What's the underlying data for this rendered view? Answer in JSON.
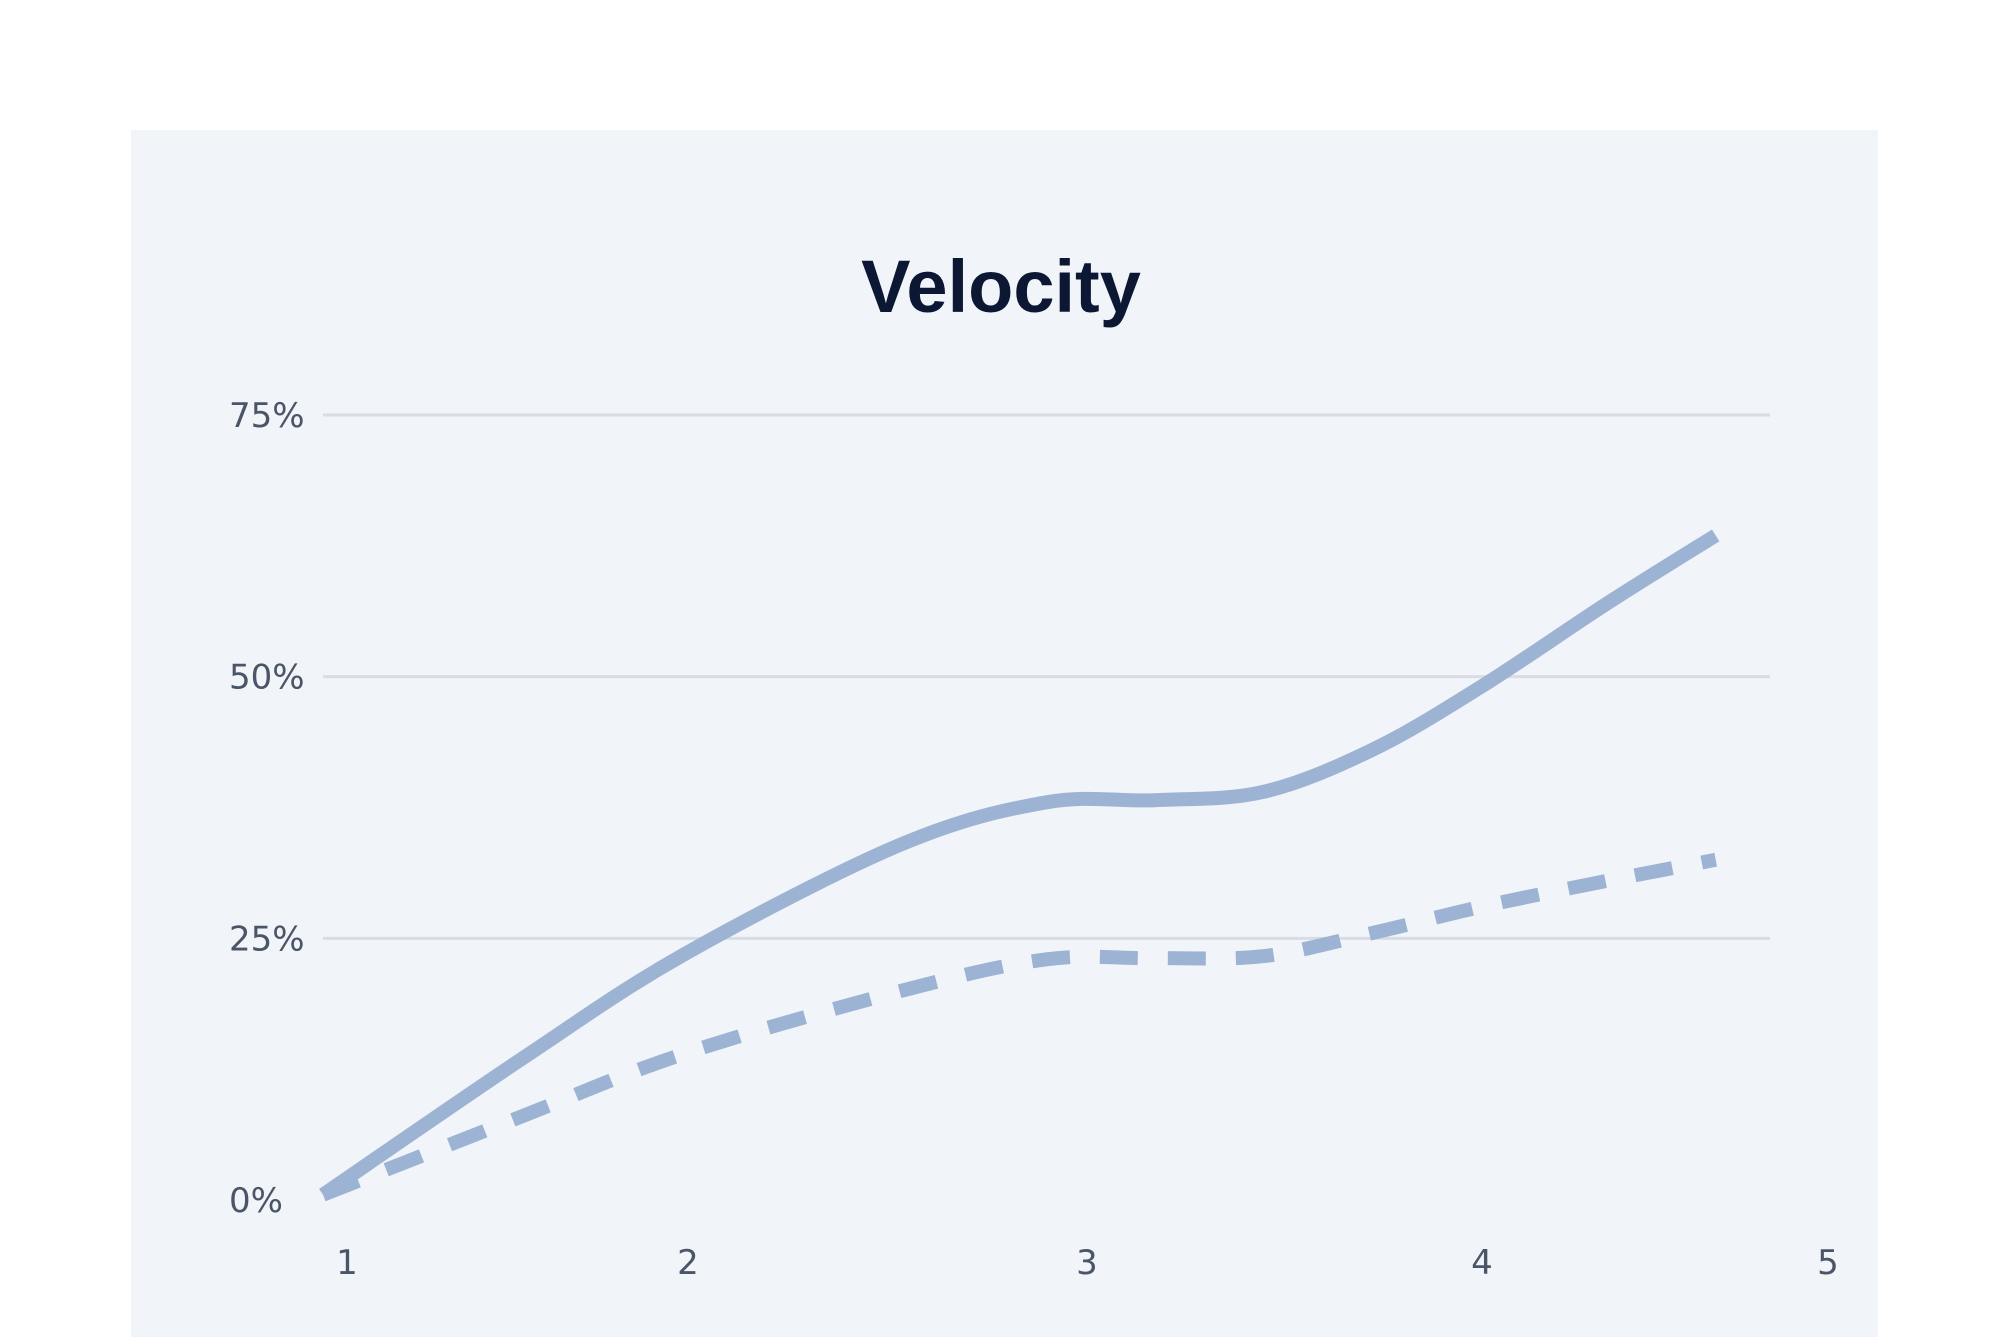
{
  "chart_data": {
    "type": "line",
    "title": "Velocity",
    "xlabel": "",
    "ylabel": "",
    "x": [
      1,
      2,
      3,
      4,
      5
    ],
    "xlim": [
      1,
      5
    ],
    "ylim": [
      0,
      75
    ],
    "y_ticks": [
      0,
      25,
      50,
      75
    ],
    "y_tick_labels": [
      "0%",
      "25%",
      "50%",
      "75%"
    ],
    "x_tick_labels": [
      "1",
      "2",
      "3",
      "4",
      "5"
    ],
    "grid": true,
    "legend": "none",
    "series": [
      {
        "style": "solid",
        "color": "#9db3d3",
        "points": [
          [
            1.0,
            0.5
          ],
          [
            1.55,
            13.5
          ],
          [
            2.0,
            23.5
          ],
          [
            2.6,
            34.0
          ],
          [
            3.0,
            38.0
          ],
          [
            3.3,
            38.2
          ],
          [
            3.6,
            39.0
          ],
          [
            3.9,
            43.0
          ],
          [
            4.2,
            49.0
          ],
          [
            4.55,
            57.0
          ],
          [
            4.85,
            63.5
          ]
        ]
      },
      {
        "style": "dashed",
        "color": "#9db3d3",
        "points": [
          [
            1.0,
            0.5
          ],
          [
            1.55,
            8.0
          ],
          [
            2.0,
            14.0
          ],
          [
            2.6,
            20.0
          ],
          [
            3.0,
            23.0
          ],
          [
            3.3,
            23.1
          ],
          [
            3.6,
            23.3
          ],
          [
            3.9,
            25.5
          ],
          [
            4.2,
            28.0
          ],
          [
            4.55,
            30.5
          ],
          [
            4.85,
            32.5
          ]
        ]
      }
    ]
  }
}
